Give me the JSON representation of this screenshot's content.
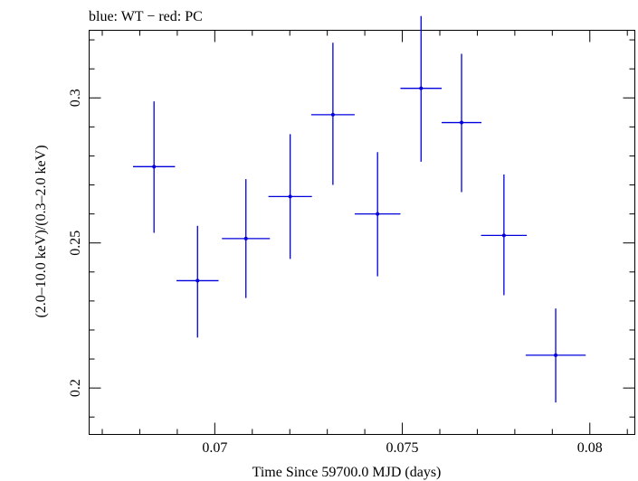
{
  "chart_data": {
    "type": "scatter",
    "title": "blue: WT − red: PC",
    "xlabel": "Time Since 59700.0 MJD (days)",
    "ylabel": "(2.0–10.0 keV)/(0.3–2.0 keV)",
    "xlim": [
      0.06665,
      0.0812
    ],
    "ylim": [
      0.184,
      0.3233
    ],
    "x_ticks": [
      {
        "value": 0.07,
        "label": "0.07"
      },
      {
        "value": 0.075,
        "label": "0.075"
      },
      {
        "value": 0.08,
        "label": "0.08"
      }
    ],
    "y_ticks": [
      {
        "value": 0.2,
        "label": "0.2"
      },
      {
        "value": 0.25,
        "label": "0.25"
      },
      {
        "value": 0.3,
        "label": "0.3"
      }
    ],
    "grid": false,
    "colors": {
      "WT": "#0000dd",
      "frame": "#000000"
    },
    "series": [
      {
        "name": "WT",
        "points": [
          {
            "x": 0.06838,
            "y": 0.2763,
            "xerr": 0.00056,
            "ylo": 0.2535,
            "yhi": 0.2988
          },
          {
            "x": 0.06954,
            "y": 0.237,
            "xerr": 0.00056,
            "ylo": 0.2174,
            "yhi": 0.2559
          },
          {
            "x": 0.07083,
            "y": 0.2515,
            "xerr": 0.00064,
            "ylo": 0.231,
            "yhi": 0.272
          },
          {
            "x": 0.07201,
            "y": 0.266,
            "xerr": 0.00058,
            "ylo": 0.2445,
            "yhi": 0.2875
          },
          {
            "x": 0.07315,
            "y": 0.2942,
            "xerr": 0.00058,
            "ylo": 0.27,
            "yhi": 0.319
          },
          {
            "x": 0.07434,
            "y": 0.26,
            "xerr": 0.00061,
            "ylo": 0.2385,
            "yhi": 0.2813
          },
          {
            "x": 0.0755,
            "y": 0.3033,
            "xerr": 0.00055,
            "ylo": 0.278,
            "yhi": 0.3282
          },
          {
            "x": 0.07658,
            "y": 0.2915,
            "xerr": 0.00053,
            "ylo": 0.2675,
            "yhi": 0.3152
          },
          {
            "x": 0.07771,
            "y": 0.2526,
            "xerr": 0.00061,
            "ylo": 0.232,
            "yhi": 0.2736
          },
          {
            "x": 0.07909,
            "y": 0.2113,
            "xerr": 0.0008,
            "ylo": 0.195,
            "yhi": 0.2274
          }
        ]
      }
    ]
  }
}
